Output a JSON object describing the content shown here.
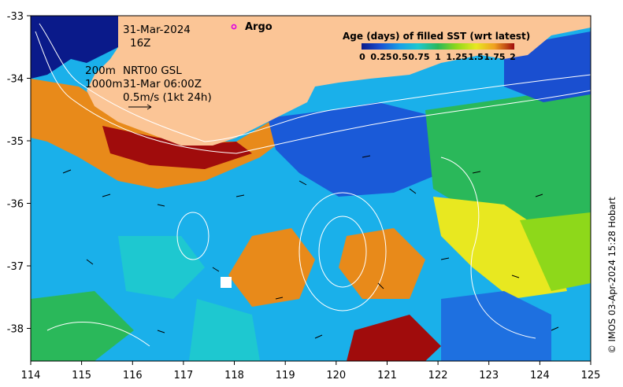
{
  "map": {
    "date": "31-Mar-2024",
    "time": "16Z",
    "contour_note_1": "200m",
    "contour_note_2": "1000m",
    "product": "NRT00 GSL",
    "product_time": "31-Mar 06:00Z",
    "vector_scale": "0.5m/s (1kt 24h)",
    "argo_label": "Argo",
    "credit": "© IMOS 03-Apr-2024 15:28 Hobart",
    "x_ticks": [
      "114",
      "115",
      "116",
      "117",
      "118",
      "119",
      "120",
      "121",
      "122",
      "123",
      "124",
      "125"
    ],
    "y_ticks": [
      "-33",
      "-34",
      "-35",
      "-36",
      "-37",
      "-38"
    ],
    "colors": {
      "land": "#fbc596",
      "deep": "#0a1a8a",
      "contour": "#ffffff",
      "argo": "#e000e0"
    }
  },
  "legend": {
    "title": "Age (days) of filled SST (wrt latest)",
    "ticks": [
      "0",
      "0.25",
      "0.5",
      "0.75",
      "1",
      "1.25",
      "1.5",
      "1.75",
      "2"
    ],
    "colors": [
      "#0a1a8a",
      "#1a4fd0",
      "#1aa0e8",
      "#1ec8d0",
      "#2ab85a",
      "#8ed81a",
      "#e8e820",
      "#f0a020",
      "#e05a10",
      "#a00c0c"
    ]
  }
}
